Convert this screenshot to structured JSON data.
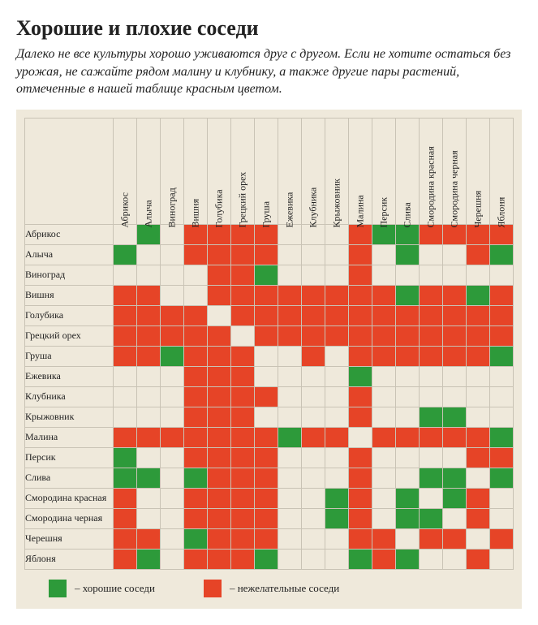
{
  "title_part1": "Хорошие",
  "title_part2": " и ",
  "title_part3": "плохие",
  "title_part4": " соседи",
  "subtitle": "Далеко не все культуры хорошо уживаются друг с другом. Если не хотите остаться без урожая, не сажайте рядом малину и клубнику, а также другие пары растений, отмеченные в нашей таблице красным цветом.",
  "legend": {
    "good": "– хорошие соседи",
    "bad": "– нежелательные соседи"
  },
  "colors": {
    "good": "#2d9a3a",
    "bad": "#e64427",
    "empty": "#efe9db",
    "panel_bg": "#efe9db",
    "grid": "#c9c3b5"
  },
  "plants": [
    "Абрикос",
    "Алыча",
    "Виноград",
    "Вишня",
    "Голубика",
    "Грецкий орех",
    "Груша",
    "Ежевика",
    "Клубника",
    "Крыжовник",
    "Малина",
    "Персик",
    "Слива",
    "Смородина красная",
    "Смородина черная",
    "Черешня",
    "Яблоня"
  ],
  "matrix": [
    [
      "",
      "g",
      "",
      "b",
      "b",
      "b",
      "b",
      "",
      "",
      "",
      "b",
      "g",
      "g",
      "b",
      "b",
      "b",
      "b"
    ],
    [
      "g",
      "",
      "",
      "b",
      "b",
      "b",
      "b",
      "",
      "",
      "",
      "b",
      "",
      "g",
      "",
      "",
      "b",
      "g"
    ],
    [
      "",
      "",
      "",
      "",
      "b",
      "b",
      "g",
      "",
      "",
      "",
      "b",
      "",
      "",
      "",
      "",
      "",
      ""
    ],
    [
      "b",
      "b",
      "",
      "",
      "b",
      "b",
      "b",
      "b",
      "b",
      "b",
      "b",
      "b",
      "g",
      "b",
      "b",
      "g",
      "b"
    ],
    [
      "b",
      "b",
      "b",
      "b",
      "",
      "b",
      "b",
      "b",
      "b",
      "b",
      "b",
      "b",
      "b",
      "b",
      "b",
      "b",
      "b"
    ],
    [
      "b",
      "b",
      "b",
      "b",
      "b",
      "",
      "b",
      "b",
      "b",
      "b",
      "b",
      "b",
      "b",
      "b",
      "b",
      "b",
      "b"
    ],
    [
      "b",
      "b",
      "g",
      "b",
      "b",
      "b",
      "",
      "",
      "b",
      "",
      "b",
      "b",
      "b",
      "b",
      "b",
      "b",
      "g"
    ],
    [
      "",
      "",
      "",
      "b",
      "b",
      "b",
      "",
      "",
      "",
      "",
      "g",
      "",
      "",
      "",
      "",
      "",
      ""
    ],
    [
      "",
      "",
      "",
      "b",
      "b",
      "b",
      "b",
      "",
      "",
      "",
      "b",
      "",
      "",
      "",
      "",
      "",
      ""
    ],
    [
      "",
      "",
      "",
      "b",
      "b",
      "b",
      "",
      "",
      "",
      "",
      "b",
      "",
      "",
      "g",
      "g",
      "",
      ""
    ],
    [
      "b",
      "b",
      "b",
      "b",
      "b",
      "b",
      "b",
      "g",
      "b",
      "b",
      "",
      "b",
      "b",
      "b",
      "b",
      "b",
      "g"
    ],
    [
      "g",
      "",
      "",
      "b",
      "b",
      "b",
      "b",
      "",
      "",
      "",
      "b",
      "",
      "",
      "",
      "",
      "b",
      "b"
    ],
    [
      "g",
      "g",
      "",
      "g",
      "b",
      "b",
      "b",
      "",
      "",
      "",
      "b",
      "",
      "",
      "g",
      "g",
      "",
      "g"
    ],
    [
      "b",
      "",
      "",
      "b",
      "b",
      "b",
      "b",
      "",
      "",
      "g",
      "b",
      "",
      "g",
      "",
      "g",
      "b",
      ""
    ],
    [
      "b",
      "",
      "",
      "b",
      "b",
      "b",
      "b",
      "",
      "",
      "g",
      "b",
      "",
      "g",
      "g",
      "",
      "b",
      ""
    ],
    [
      "b",
      "b",
      "",
      "g",
      "b",
      "b",
      "b",
      "",
      "",
      "",
      "b",
      "b",
      "",
      "b",
      "b",
      "",
      "b"
    ],
    [
      "b",
      "g",
      "",
      "b",
      "b",
      "b",
      "g",
      "",
      "",
      "",
      "g",
      "b",
      "g",
      "",
      "",
      "b",
      ""
    ]
  ],
  "cell_size": {
    "w": 26,
    "h": 24
  },
  "row_header_width": 120,
  "col_header_height": 130,
  "font_sizes": {
    "title": 26,
    "subtitle": 16,
    "labels": 12,
    "legend": 13
  }
}
